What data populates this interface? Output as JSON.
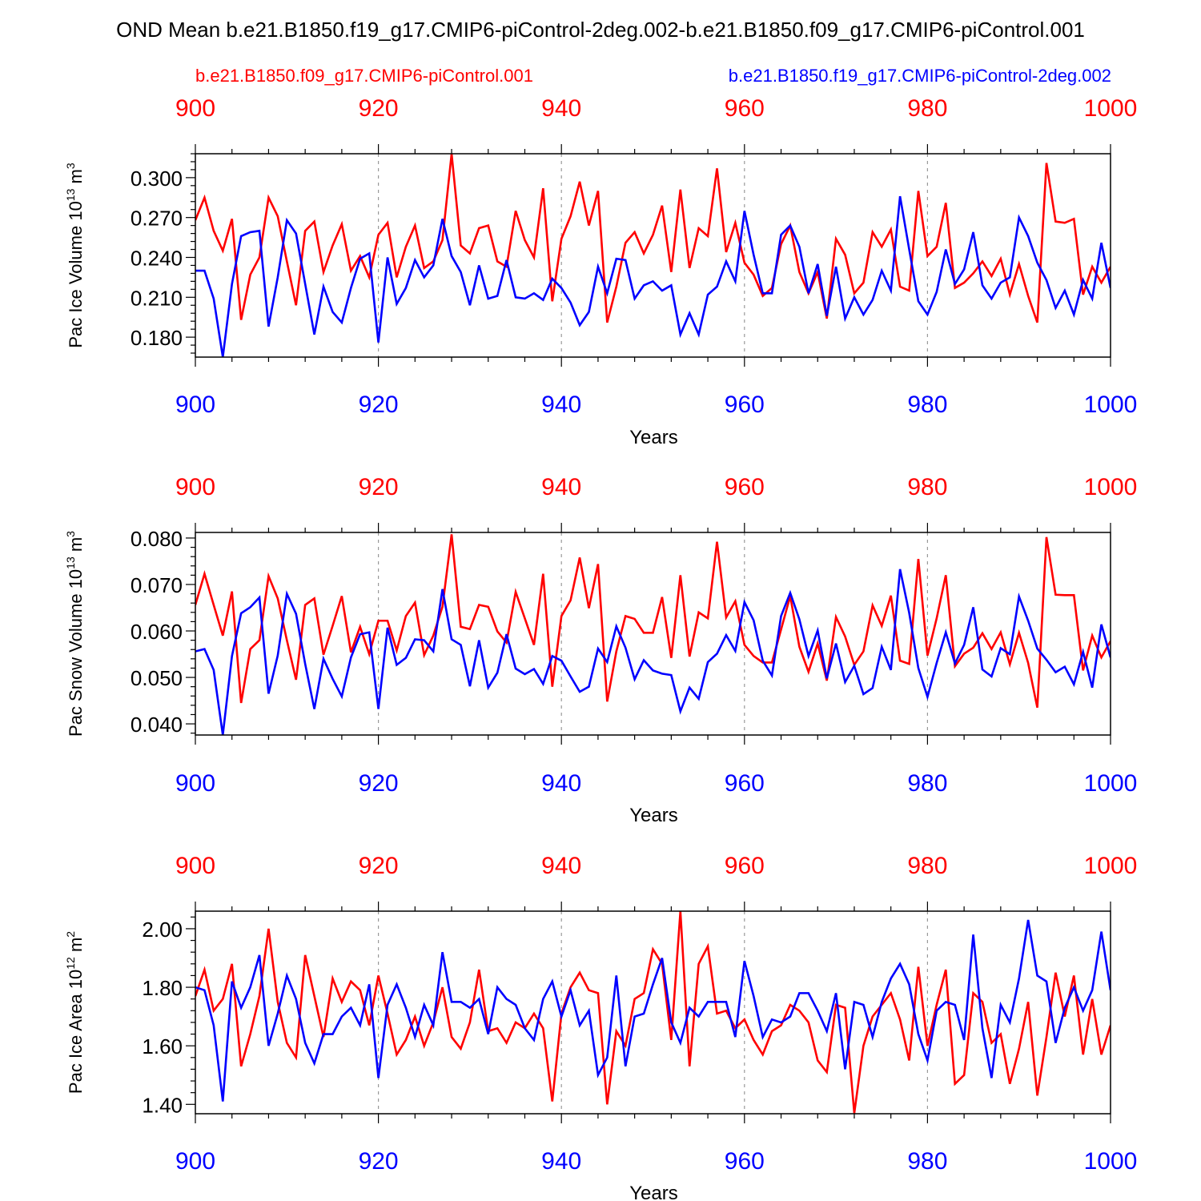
{
  "title": "OND Mean b.e21.B1850.f19_g17.CMIP6-piControl-2deg.002-b.e21.B1850.f09_g17.CMIP6-piControl.001",
  "legend": {
    "red_label": "b.e21.B1850.f09_g17.CMIP6-piControl.001",
    "blue_label": "b.e21.B1850.f19_g17.CMIP6-piControl-2deg.002"
  },
  "colors": {
    "red": "#ff0000",
    "blue": "#0000ff",
    "axis": "#000000",
    "grid": "#999999"
  },
  "chart_data": [
    {
      "type": "line",
      "ylabel": "Pac Ice Volume 10",
      "ylabel_exp": "13",
      "ylabel_unit": " m",
      "ylabel_unit_exp": "3",
      "xlabel": "Years",
      "xlim": [
        900,
        1000
      ],
      "ylim": [
        0.165,
        0.318
      ],
      "yticks": [
        0.18,
        0.21,
        0.24,
        0.27,
        0.3
      ],
      "ytick_labels": [
        "0.180",
        "0.210",
        "0.240",
        "0.270",
        "0.300"
      ],
      "ytick_minor": 0.006,
      "xticks": [
        900,
        920,
        940,
        960,
        980,
        1000
      ],
      "xtick_labels": [
        "900",
        "920",
        "940",
        "960",
        "980",
        "1000"
      ],
      "x_start": 900,
      "series": [
        {
          "name": "b.e21.B1850.f09_g17.CMIP6-piControl.001",
          "color": "red",
          "values": [
            0.268,
            0.285,
            0.26,
            0.245,
            0.269,
            0.193,
            0.227,
            0.24,
            0.285,
            0.271,
            0.237,
            0.204,
            0.26,
            0.267,
            0.229,
            0.249,
            0.265,
            0.23,
            0.241,
            0.225,
            0.257,
            0.266,
            0.225,
            0.248,
            0.264,
            0.232,
            0.237,
            0.253,
            0.318,
            0.249,
            0.243,
            0.262,
            0.264,
            0.237,
            0.233,
            0.275,
            0.253,
            0.24,
            0.292,
            0.207,
            0.254,
            0.271,
            0.297,
            0.264,
            0.29,
            0.191,
            0.218,
            0.251,
            0.259,
            0.243,
            0.257,
            0.279,
            0.229,
            0.291,
            0.232,
            0.262,
            0.256,
            0.307,
            0.244,
            0.266,
            0.236,
            0.227,
            0.211,
            0.217,
            0.25,
            0.264,
            0.229,
            0.213,
            0.229,
            0.194,
            0.254,
            0.242,
            0.213,
            0.221,
            0.259,
            0.248,
            0.261,
            0.218,
            0.215,
            0.29,
            0.241,
            0.248,
            0.281,
            0.217,
            0.221,
            0.228,
            0.237,
            0.226,
            0.239,
            0.212,
            0.235,
            0.211,
            0.191,
            0.311,
            0.267,
            0.266,
            0.269,
            0.212,
            0.233,
            0.221,
            0.233
          ]
        },
        {
          "name": "b.e21.B1850.f19_g17.CMIP6-piControl-2deg.002",
          "color": "blue",
          "values": [
            0.23,
            0.23,
            0.209,
            0.165,
            0.22,
            0.256,
            0.259,
            0.26,
            0.188,
            0.225,
            0.268,
            0.258,
            0.22,
            0.182,
            0.218,
            0.199,
            0.191,
            0.217,
            0.239,
            0.243,
            0.176,
            0.24,
            0.205,
            0.217,
            0.238,
            0.225,
            0.234,
            0.269,
            0.241,
            0.229,
            0.204,
            0.234,
            0.209,
            0.211,
            0.238,
            0.21,
            0.209,
            0.213,
            0.208,
            0.224,
            0.217,
            0.206,
            0.189,
            0.199,
            0.233,
            0.213,
            0.239,
            0.238,
            0.209,
            0.219,
            0.222,
            0.215,
            0.219,
            0.182,
            0.198,
            0.182,
            0.212,
            0.218,
            0.237,
            0.222,
            0.275,
            0.242,
            0.213,
            0.213,
            0.257,
            0.264,
            0.248,
            0.213,
            0.235,
            0.196,
            0.233,
            0.194,
            0.21,
            0.197,
            0.208,
            0.23,
            0.215,
            0.286,
            0.246,
            0.207,
            0.197,
            0.214,
            0.246,
            0.22,
            0.231,
            0.259,
            0.219,
            0.209,
            0.221,
            0.225,
            0.27,
            0.256,
            0.236,
            0.223,
            0.202,
            0.215,
            0.197,
            0.223,
            0.209,
            0.251,
            0.217
          ]
        }
      ]
    },
    {
      "type": "line",
      "ylabel": "Pac Snow Volume 10",
      "ylabel_exp": "13",
      "ylabel_unit": " m",
      "ylabel_unit_exp": "3",
      "xlabel": "Years",
      "xlim": [
        900,
        1000
      ],
      "ylim": [
        0.0376,
        0.0812
      ],
      "yticks": [
        0.04,
        0.05,
        0.06,
        0.07,
        0.08
      ],
      "ytick_labels": [
        "0.040",
        "0.050",
        "0.060",
        "0.070",
        "0.080"
      ],
      "ytick_minor": 0.002,
      "xticks": [
        900,
        920,
        940,
        960,
        980,
        1000
      ],
      "xtick_labels": [
        "900",
        "920",
        "940",
        "960",
        "980",
        "1000"
      ],
      "x_start": 900,
      "series": [
        {
          "name": "b.e21.B1850.f09_g17.CMIP6-piControl.001",
          "color": "red",
          "values": [
            0.0656,
            0.0723,
            0.0656,
            0.059,
            0.0685,
            0.0445,
            0.0561,
            0.058,
            0.0718,
            0.067,
            0.058,
            0.0495,
            0.0656,
            0.067,
            0.0549,
            0.0611,
            0.0675,
            0.0554,
            0.0609,
            0.055,
            0.0622,
            0.0622,
            0.0558,
            0.0632,
            0.0661,
            0.0548,
            0.059,
            0.0652,
            0.0808,
            0.0609,
            0.0604,
            0.0656,
            0.0652,
            0.0599,
            0.0575,
            0.0684,
            0.0627,
            0.057,
            0.0723,
            0.048,
            0.0632,
            0.0666,
            0.0758,
            0.0649,
            0.0744,
            0.0448,
            0.0556,
            0.0632,
            0.0626,
            0.0596,
            0.0596,
            0.0673,
            0.0542,
            0.072,
            0.0545,
            0.064,
            0.0627,
            0.0792,
            0.0629,
            0.0664,
            0.057,
            0.0546,
            0.0532,
            0.0532,
            0.0603,
            0.0675,
            0.0566,
            0.0512,
            0.0573,
            0.0493,
            0.063,
            0.0588,
            0.0527,
            0.0556,
            0.0655,
            0.0611,
            0.0676,
            0.0536,
            0.0529,
            0.0755,
            0.0547,
            0.0627,
            0.072,
            0.0524,
            0.0551,
            0.0564,
            0.0595,
            0.0561,
            0.0597,
            0.0528,
            0.0596,
            0.0531,
            0.0435,
            0.0802,
            0.0678,
            0.0677,
            0.0677,
            0.0515,
            0.059,
            0.0543,
            0.0578
          ]
        },
        {
          "name": "b.e21.B1850.f19_g17.CMIP6-piControl-2deg.002",
          "color": "blue",
          "values": [
            0.0556,
            0.0561,
            0.0516,
            0.0376,
            0.0546,
            0.0638,
            0.0651,
            0.0672,
            0.0465,
            0.0547,
            0.068,
            0.0637,
            0.0529,
            0.0432,
            0.054,
            0.0497,
            0.0459,
            0.0543,
            0.0593,
            0.0597,
            0.0432,
            0.0607,
            0.0527,
            0.0542,
            0.0582,
            0.058,
            0.0556,
            0.069,
            0.0582,
            0.057,
            0.0481,
            0.058,
            0.0478,
            0.051,
            0.0593,
            0.0519,
            0.0507,
            0.0518,
            0.0486,
            0.0546,
            0.0536,
            0.0502,
            0.0469,
            0.048,
            0.0562,
            0.0533,
            0.061,
            0.0564,
            0.0496,
            0.0537,
            0.0515,
            0.0508,
            0.0505,
            0.0427,
            0.0478,
            0.0454,
            0.0533,
            0.0551,
            0.0591,
            0.0557,
            0.0662,
            0.0623,
            0.0536,
            0.0504,
            0.0632,
            0.0682,
            0.0625,
            0.0546,
            0.0601,
            0.0498,
            0.0573,
            0.049,
            0.0525,
            0.0464,
            0.0477,
            0.0566,
            0.0516,
            0.0733,
            0.0639,
            0.052,
            0.0458,
            0.0531,
            0.0597,
            0.053,
            0.057,
            0.0651,
            0.0517,
            0.0502,
            0.0563,
            0.055,
            0.0674,
            0.0622,
            0.0562,
            0.0538,
            0.0511,
            0.0523,
            0.0485,
            0.0555,
            0.0478,
            0.0614,
            0.0543
          ]
        }
      ]
    },
    {
      "type": "line",
      "ylabel": "Pac Ice Area 10",
      "ylabel_exp": "12",
      "ylabel_unit": " m",
      "ylabel_unit_exp": "2",
      "xlabel": "Years",
      "xlim": [
        900,
        1000
      ],
      "ylim": [
        1.368,
        2.06
      ],
      "yticks": [
        1.4,
        1.6,
        1.8,
        2.0
      ],
      "ytick_labels": [
        "1.40",
        "1.60",
        "1.80",
        "2.00"
      ],
      "ytick_minor": 0.04,
      "xticks": [
        900,
        920,
        940,
        960,
        980,
        1000
      ],
      "xtick_labels": [
        "900",
        "920",
        "940",
        "960",
        "980",
        "1000"
      ],
      "x_start": 900,
      "series": [
        {
          "name": "b.e21.B1850.f09_g17.CMIP6-piControl.001",
          "color": "red",
          "values": [
            1.77,
            1.86,
            1.72,
            1.76,
            1.88,
            1.53,
            1.64,
            1.77,
            2.0,
            1.75,
            1.61,
            1.56,
            1.91,
            1.77,
            1.63,
            1.83,
            1.75,
            1.82,
            1.79,
            1.67,
            1.84,
            1.71,
            1.57,
            1.62,
            1.7,
            1.6,
            1.68,
            1.8,
            1.63,
            1.59,
            1.68,
            1.86,
            1.65,
            1.66,
            1.61,
            1.68,
            1.66,
            1.71,
            1.66,
            1.41,
            1.71,
            1.8,
            1.85,
            1.79,
            1.78,
            1.4,
            1.65,
            1.6,
            1.76,
            1.78,
            1.93,
            1.88,
            1.62,
            2.06,
            1.53,
            1.88,
            1.94,
            1.71,
            1.72,
            1.66,
            1.69,
            1.62,
            1.57,
            1.65,
            1.67,
            1.74,
            1.72,
            1.68,
            1.55,
            1.51,
            1.74,
            1.73,
            1.37,
            1.6,
            1.7,
            1.74,
            1.78,
            1.69,
            1.55,
            1.87,
            1.6,
            1.74,
            1.86,
            1.47,
            1.5,
            1.78,
            1.75,
            1.61,
            1.64,
            1.47,
            1.59,
            1.75,
            1.43,
            1.63,
            1.85,
            1.7,
            1.84,
            1.57,
            1.76,
            1.57,
            1.67
          ]
        },
        {
          "name": "b.e21.B1850.f19_g17.CMIP6-piControl-2deg.002",
          "color": "blue",
          "values": [
            1.8,
            1.79,
            1.67,
            1.41,
            1.82,
            1.73,
            1.8,
            1.91,
            1.6,
            1.71,
            1.84,
            1.76,
            1.61,
            1.54,
            1.64,
            1.64,
            1.7,
            1.73,
            1.67,
            1.81,
            1.49,
            1.74,
            1.81,
            1.73,
            1.63,
            1.74,
            1.67,
            1.92,
            1.75,
            1.75,
            1.73,
            1.76,
            1.64,
            1.8,
            1.76,
            1.74,
            1.66,
            1.62,
            1.76,
            1.82,
            1.7,
            1.79,
            1.67,
            1.72,
            1.5,
            1.56,
            1.84,
            1.53,
            1.7,
            1.71,
            1.81,
            1.9,
            1.68,
            1.61,
            1.73,
            1.7,
            1.75,
            1.75,
            1.75,
            1.63,
            1.89,
            1.77,
            1.63,
            1.69,
            1.68,
            1.7,
            1.78,
            1.78,
            1.72,
            1.65,
            1.78,
            1.52,
            1.75,
            1.74,
            1.63,
            1.75,
            1.83,
            1.88,
            1.81,
            1.64,
            1.55,
            1.72,
            1.75,
            1.74,
            1.62,
            1.98,
            1.66,
            1.49,
            1.74,
            1.68,
            1.83,
            2.03,
            1.84,
            1.82,
            1.61,
            1.73,
            1.8,
            1.72,
            1.79,
            1.99,
            1.79
          ]
        }
      ]
    }
  ]
}
